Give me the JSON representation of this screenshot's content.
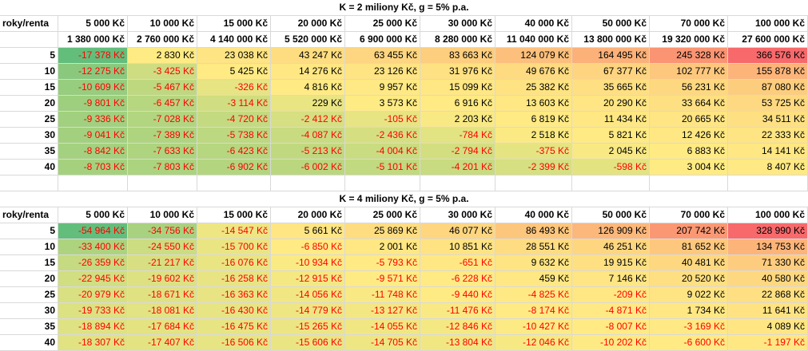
{
  "table1": {
    "title": "K = 2 miliony Kč, g = 5% p.a.",
    "corner": "roky/renta",
    "headers": [
      "5 000 Kč",
      "10 000 Kč",
      "15 000 Kč",
      "20 000 Kč",
      "25 000 Kč",
      "30 000 Kč",
      "40 000 Kč",
      "50 000 Kč",
      "70 000 Kč",
      "100 000 Kč"
    ],
    "subheaders": [
      "1 380 000 Kč",
      "2 760 000 Kč",
      "4 140 000 Kč",
      "5 520 000 Kč",
      "6 900 000 Kč",
      "8 280 000 Kč",
      "11 040 000 Kč",
      "13 800 000 Kč",
      "19 320 000 Kč",
      "27 600 000 Kč"
    ],
    "rows": [
      {
        "year": "5",
        "values": [
          "-17 378 Kč",
          "2 830 Kč",
          "23 038 Kč",
          "43 247 Kč",
          "63 455 Kč",
          "83 663 Kč",
          "124 079 Kč",
          "164 495 Kč",
          "245 328 Kč",
          "366 576 Kč"
        ]
      },
      {
        "year": "10",
        "values": [
          "-12 275 Kč",
          "-3 425 Kč",
          "5 425 Kč",
          "14 276 Kč",
          "23 126 Kč",
          "31 976 Kč",
          "49 676 Kč",
          "67 377 Kč",
          "102 777 Kč",
          "155 878 Kč"
        ]
      },
      {
        "year": "15",
        "values": [
          "-10 609 Kč",
          "-5 467 Kč",
          "-326 Kč",
          "4 816 Kč",
          "9 957 Kč",
          "15 099 Kč",
          "25 382 Kč",
          "35 665 Kč",
          "56 231 Kč",
          "87 080 Kč"
        ]
      },
      {
        "year": "20",
        "values": [
          "-9 801 Kč",
          "-6 457 Kč",
          "-3 114 Kč",
          "229 Kč",
          "3 573 Kč",
          "6 916 Kč",
          "13 603 Kč",
          "20 290 Kč",
          "33 664 Kč",
          "53 725 Kč"
        ]
      },
      {
        "year": "25",
        "values": [
          "-9 336 Kč",
          "-7 028 Kč",
          "-4 720 Kč",
          "-2 412 Kč",
          "-105 Kč",
          "2 203 Kč",
          "6 819 Kč",
          "11 434 Kč",
          "20 665 Kč",
          "34 511 Kč"
        ]
      },
      {
        "year": "30",
        "values": [
          "-9 041 Kč",
          "-7 389 Kč",
          "-5 738 Kč",
          "-4 087 Kč",
          "-2 436 Kč",
          "-784 Kč",
          "2 518 Kč",
          "5 821 Kč",
          "12 426 Kč",
          "22 333 Kč"
        ]
      },
      {
        "year": "35",
        "values": [
          "-8 842 Kč",
          "-7 633 Kč",
          "-6 423 Kč",
          "-5 213 Kč",
          "-4 004 Kč",
          "-2 794 Kč",
          "-375 Kč",
          "2 045 Kč",
          "6 883 Kč",
          "14 141 Kč"
        ]
      },
      {
        "year": "40",
        "values": [
          "-8 703 Kč",
          "-7 803 Kč",
          "-6 902 Kč",
          "-6 002 Kč",
          "-5 101 Kč",
          "-4 201 Kč",
          "-2 399 Kč",
          "-598 Kč",
          "3 004 Kč",
          "8 407 Kč"
        ]
      }
    ]
  },
  "table2": {
    "title": "K = 4 miliony Kč, g = 5% p.a.",
    "corner": "roky/renta",
    "headers": [
      "5 000 Kč",
      "10 000 Kč",
      "15 000 Kč",
      "20 000 Kč",
      "25 000 Kč",
      "30 000 Kč",
      "40 000 Kč",
      "50 000 Kč",
      "70 000 Kč",
      "100 000 Kč"
    ],
    "rows": [
      {
        "year": "5",
        "values": [
          "-54 964 Kč",
          "-34 756 Kč",
          "-14 547 Kč",
          "5 661 Kč",
          "25 869 Kč",
          "46 077 Kč",
          "86 493 Kč",
          "126 909 Kč",
          "207 742 Kč",
          "328 990 Kč"
        ]
      },
      {
        "year": "10",
        "values": [
          "-33 400 Kč",
          "-24 550 Kč",
          "-15 700 Kč",
          "-6 850 Kč",
          "2 001 Kč",
          "10 851 Kč",
          "28 551 Kč",
          "46 251 Kč",
          "81 652 Kč",
          "134 753 Kč"
        ]
      },
      {
        "year": "15",
        "values": [
          "-26 359 Kč",
          "-21 217 Kč",
          "-16 076 Kč",
          "-10 934 Kč",
          "-5 793 Kč",
          "-651 Kč",
          "9 632 Kč",
          "19 915 Kč",
          "40 481 Kč",
          "71 330 Kč"
        ]
      },
      {
        "year": "20",
        "values": [
          "-22 945 Kč",
          "-19 602 Kč",
          "-16 258 Kč",
          "-12 915 Kč",
          "-9 571 Kč",
          "-6 228 Kč",
          "459 Kč",
          "7 146 Kč",
          "20 520 Kč",
          "40 580 Kč"
        ]
      },
      {
        "year": "25",
        "values": [
          "-20 979 Kč",
          "-18 671 Kč",
          "-16 363 Kč",
          "-14 056 Kč",
          "-11 748 Kč",
          "-9 440 Kč",
          "-4 825 Kč",
          "-209 Kč",
          "9 022 Kč",
          "22 868 Kč"
        ]
      },
      {
        "year": "30",
        "values": [
          "-19 733 Kč",
          "-18 081 Kč",
          "-16 430 Kč",
          "-14 779 Kč",
          "-13 127 Kč",
          "-11 476 Kč",
          "-8 174 Kč",
          "-4 871 Kč",
          "1 734 Kč",
          "11 641 Kč"
        ]
      },
      {
        "year": "35",
        "values": [
          "-18 894 Kč",
          "-17 684 Kč",
          "-16 475 Kč",
          "-15 265 Kč",
          "-14 055 Kč",
          "-12 846 Kč",
          "-10 427 Kč",
          "-8 007 Kč",
          "-3 169 Kč",
          "4 089 Kč"
        ]
      },
      {
        "year": "40",
        "values": [
          "-18 307 Kč",
          "-17 407 Kč",
          "-16 506 Kč",
          "-15 606 Kč",
          "-14 705 Kč",
          "-13 804 Kč",
          "-12 046 Kč",
          "-10 202 Kč",
          "-6 600 Kč",
          "-1 197 Kč"
        ]
      }
    ]
  },
  "colors": {
    "negative_text": "#ff0000",
    "scale_low": "#63be7b",
    "scale_mid": "#ffeb84",
    "scale_high": "#f8696b",
    "gridline": "#d9d9d9"
  }
}
